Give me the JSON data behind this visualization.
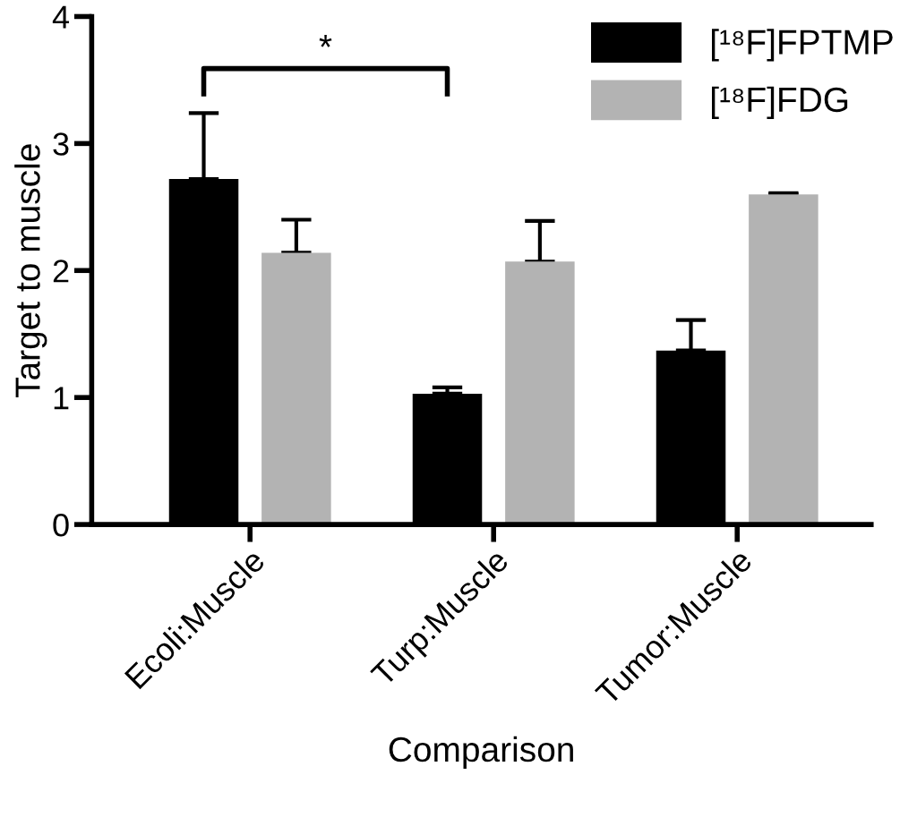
{
  "chart_data": {
    "type": "bar",
    "xlabel": "Comparison",
    "ylabel": "Target to muscle",
    "categories": [
      "Ecoli:Muscle",
      "Turp:Muscle",
      "Tumor:Muscle"
    ],
    "series": [
      {
        "name": "[¹⁸F]FPTMP",
        "color": "#000000",
        "values": [
          2.72,
          1.03,
          1.37
        ],
        "errors": [
          [
            2.72,
            3.24
          ],
          [
            1.03,
            1.08
          ],
          [
            1.37,
            1.61
          ]
        ]
      },
      {
        "name": "[¹⁸F]FDG",
        "color": "#b3b3b3",
        "values": [
          2.14,
          2.07,
          2.6
        ],
        "errors": [
          [
            2.14,
            2.4
          ],
          [
            2.07,
            2.39
          ],
          [
            2.6,
            2.61
          ]
        ]
      }
    ],
    "ylim": [
      0,
      4
    ],
    "yticks": [
      0,
      1,
      2,
      3,
      4
    ],
    "grid": false,
    "legend": "top right",
    "annotations": [
      "*"
    ]
  }
}
